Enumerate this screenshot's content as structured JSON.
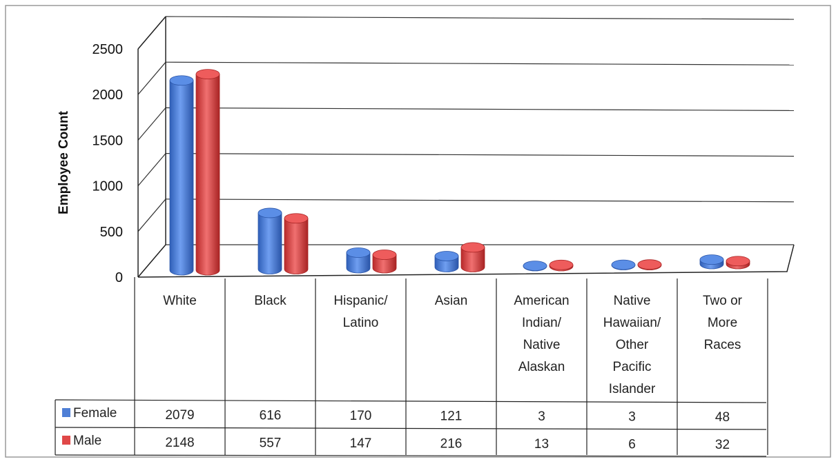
{
  "chart_data": {
    "type": "bar",
    "ylabel": "Employee Count",
    "ylim": [
      0,
      2500
    ],
    "yticks": [
      0,
      500,
      1000,
      1500,
      2000,
      2500
    ],
    "grid": true,
    "legend_position": "data-table-left",
    "categories": [
      [
        "White"
      ],
      [
        "Black"
      ],
      [
        "Hispanic/",
        "Latino"
      ],
      [
        "Asian"
      ],
      [
        "American",
        "Indian/",
        "Native",
        "Alaskan"
      ],
      [
        "Native",
        "Hawaiian/",
        "Other",
        "Pacific",
        "Islander"
      ],
      [
        "Two or",
        "More",
        "Races"
      ]
    ],
    "series": [
      {
        "name": "Female",
        "color": "#4f7fd6",
        "values": [
          2079,
          616,
          170,
          121,
          3,
          3,
          48
        ]
      },
      {
        "name": "Male",
        "color": "#e04848",
        "values": [
          2148,
          557,
          147,
          216,
          13,
          6,
          32
        ]
      }
    ]
  }
}
